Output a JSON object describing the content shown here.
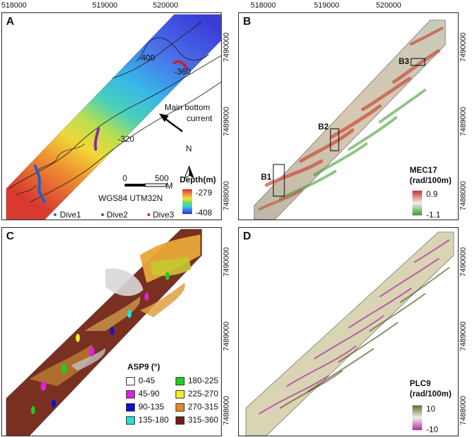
{
  "panels": {
    "a": {
      "label": "A"
    },
    "b": {
      "label": "B"
    },
    "c": {
      "label": "C"
    },
    "d": {
      "label": "D"
    }
  },
  "axes": {
    "x_ticks": [
      "518000",
      "519000",
      "520000"
    ],
    "y_ticks": [
      "7490000",
      "7489000",
      "7488000"
    ]
  },
  "panel_a": {
    "contours": [
      "-400",
      "-360",
      "-320"
    ],
    "arrow_label_line1": "Main bottom",
    "arrow_label_line2": "current",
    "north": "N",
    "scale_0": "0",
    "scale_500": "500",
    "scale_unit": "M",
    "crs": "WGS84 UTM32N",
    "legend_title": "Depth(m)",
    "legend_max": "-279",
    "legend_min": "-408",
    "dives": [
      {
        "label": "Dive1",
        "color": "#1f5fc8"
      },
      {
        "label": "Dive2",
        "color": "#8a2a9e"
      },
      {
        "label": "Dive3",
        "color": "#c0262c"
      }
    ]
  },
  "panel_b": {
    "boxes": [
      "B1",
      "B2",
      "B3"
    ],
    "legend_title_1": "MEC17",
    "legend_title_2": "(rad/100m)",
    "legend_max": "0.9",
    "legend_min": "-1.1"
  },
  "panel_c": {
    "legend_title": "ASP9 (°)",
    "classes": [
      {
        "label": "0-45",
        "color": "#ffffff"
      },
      {
        "label": "180-225",
        "color": "#22cc22"
      },
      {
        "label": "45-90",
        "color": "#e020e0"
      },
      {
        "label": "225-270",
        "color": "#f0f020"
      },
      {
        "label": "90-135",
        "color": "#1010d0"
      },
      {
        "label": "270-315",
        "color": "#e8862a"
      },
      {
        "label": "135-180",
        "color": "#20e0e0"
      },
      {
        "label": "315-360",
        "color": "#7a1a14"
      }
    ]
  },
  "panel_d": {
    "legend_title_1": "PLC9",
    "legend_title_2": "(rad/100m)",
    "legend_max": "10",
    "legend_min": "-10"
  }
}
